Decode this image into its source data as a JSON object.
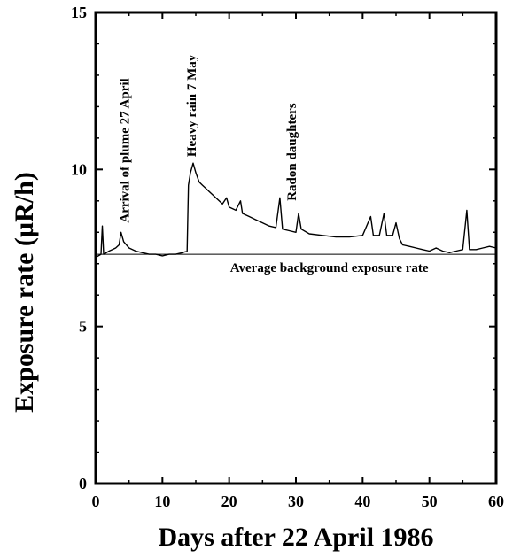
{
  "chart_data": {
    "type": "line",
    "xlabel": "Days after 22 April 1986",
    "ylabel": "Exposure rate (µR/h)",
    "xlim": [
      0,
      60
    ],
    "ylim": [
      0,
      15
    ],
    "x_ticks": [
      0,
      10,
      20,
      30,
      40,
      50,
      60
    ],
    "y_ticks": [
      0,
      5,
      10,
      15
    ],
    "x_tick_labels": [
      "0",
      "10",
      "20",
      "30",
      "40",
      "50",
      "60"
    ],
    "y_tick_labels": [
      "0",
      "5",
      "10",
      "15"
    ],
    "grid": false,
    "series": [
      {
        "values_xy": [
          [
            0,
            7.2
          ],
          [
            0.8,
            7.3
          ],
          [
            1.0,
            8.2
          ],
          [
            1.2,
            7.3
          ],
          [
            2.0,
            7.4
          ],
          [
            3.0,
            7.5
          ],
          [
            3.5,
            7.6
          ],
          [
            3.8,
            8.0
          ],
          [
            4.2,
            7.7
          ],
          [
            5.0,
            7.5
          ],
          [
            6.0,
            7.4
          ],
          [
            7.0,
            7.35
          ],
          [
            8.0,
            7.3
          ],
          [
            9.0,
            7.3
          ],
          [
            10.0,
            7.25
          ],
          [
            11.0,
            7.3
          ],
          [
            12.0,
            7.3
          ],
          [
            13.0,
            7.35
          ],
          [
            13.7,
            7.4
          ],
          [
            13.9,
            9.5
          ],
          [
            14.2,
            9.9
          ],
          [
            14.6,
            10.2
          ],
          [
            15.0,
            9.9
          ],
          [
            15.5,
            9.6
          ],
          [
            16.0,
            9.5
          ],
          [
            16.5,
            9.4
          ],
          [
            17.0,
            9.3
          ],
          [
            18.0,
            9.1
          ],
          [
            19.0,
            8.9
          ],
          [
            19.6,
            9.1
          ],
          [
            20.0,
            8.8
          ],
          [
            21.0,
            8.7
          ],
          [
            21.7,
            9.0
          ],
          [
            22.0,
            8.6
          ],
          [
            23.0,
            8.5
          ],
          [
            24.0,
            8.4
          ],
          [
            25.0,
            8.3
          ],
          [
            26.0,
            8.2
          ],
          [
            27.0,
            8.15
          ],
          [
            27.6,
            9.1
          ],
          [
            28.0,
            8.1
          ],
          [
            29.0,
            8.05
          ],
          [
            30.0,
            8.0
          ],
          [
            30.4,
            8.6
          ],
          [
            30.8,
            8.1
          ],
          [
            32.0,
            7.95
          ],
          [
            34.0,
            7.9
          ],
          [
            36.0,
            7.85
          ],
          [
            38.0,
            7.85
          ],
          [
            40.0,
            7.9
          ],
          [
            41.2,
            8.5
          ],
          [
            41.6,
            7.9
          ],
          [
            42.5,
            7.9
          ],
          [
            43.2,
            8.6
          ],
          [
            43.6,
            7.9
          ],
          [
            44.5,
            7.9
          ],
          [
            45.0,
            8.3
          ],
          [
            45.5,
            7.8
          ],
          [
            46.0,
            7.6
          ],
          [
            47.0,
            7.55
          ],
          [
            48.0,
            7.5
          ],
          [
            49.0,
            7.45
          ],
          [
            50.0,
            7.4
          ],
          [
            51.0,
            7.5
          ],
          [
            52.0,
            7.4
          ],
          [
            53.0,
            7.35
          ],
          [
            54.0,
            7.4
          ],
          [
            55.0,
            7.45
          ],
          [
            55.6,
            8.7
          ],
          [
            56.0,
            7.45
          ],
          [
            57.0,
            7.45
          ],
          [
            58.0,
            7.5
          ],
          [
            59.0,
            7.55
          ],
          [
            60.0,
            7.5
          ]
        ]
      }
    ],
    "reference_line": {
      "y": 7.3,
      "label": "Average background exposure rate"
    },
    "annotations": [
      {
        "text": "Arrival of plume 27 April",
        "x": 5,
        "y": 8.3,
        "orientation": "vertical"
      },
      {
        "text": "Heavy rain 7 May",
        "x": 15,
        "y": 10.4,
        "orientation": "vertical"
      },
      {
        "text": "Radon daughters",
        "x": 30,
        "y": 9.0,
        "orientation": "vertical"
      }
    ]
  }
}
